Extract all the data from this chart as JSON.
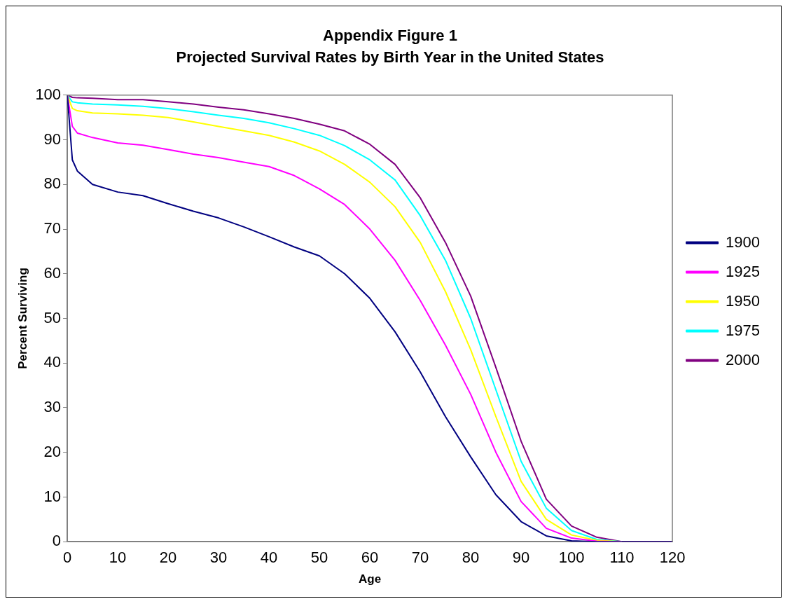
{
  "chart_data": {
    "type": "line",
    "title": "Appendix Figure 1",
    "subtitle": "Projected Survival Rates by Birth Year in the United States",
    "xlabel": "Age",
    "ylabel": "Percent Surviving",
    "x": [
      0,
      1,
      2,
      5,
      10,
      15,
      20,
      25,
      30,
      35,
      40,
      45,
      50,
      55,
      60,
      65,
      70,
      75,
      80,
      85,
      90,
      95,
      100,
      105,
      110,
      115,
      120
    ],
    "xlim": [
      0,
      120
    ],
    "xticks": [
      0,
      10,
      20,
      30,
      40,
      50,
      60,
      70,
      80,
      90,
      100,
      110,
      120
    ],
    "ylim": [
      0,
      100
    ],
    "yticks": [
      0,
      10,
      20,
      30,
      40,
      50,
      60,
      70,
      80,
      90,
      100
    ],
    "grid": false,
    "legend": "right",
    "marker": "none",
    "line_style": "solid",
    "series": [
      {
        "name": "1900",
        "color": "#000080",
        "values": [
          100,
          85.5,
          83,
          80,
          78.3,
          77.5,
          75.7,
          74,
          72.5,
          70.5,
          68.3,
          66,
          64,
          60,
          54.5,
          47,
          38,
          28,
          19,
          10.5,
          4.5,
          1.3,
          0.2,
          0,
          0,
          0,
          0
        ]
      },
      {
        "name": "1925",
        "color": "#ff00ff",
        "x": [
          0,
          1,
          2,
          5,
          10,
          15,
          20,
          25,
          30,
          35,
          40,
          45,
          50,
          55,
          60,
          65,
          70,
          75,
          80,
          85,
          90,
          95,
          100,
          105,
          110
        ],
        "values": [
          100,
          93,
          91.5,
          90.5,
          89.3,
          88.8,
          87.8,
          86.8,
          86,
          85,
          84,
          82,
          79,
          75.5,
          70,
          63,
          54,
          44,
          33,
          20,
          9,
          3,
          0.8,
          0.1,
          0
        ]
      },
      {
        "name": "1950",
        "color": "#ffff00",
        "x": [
          0,
          1,
          2,
          5,
          10,
          15,
          20,
          25,
          30,
          35,
          40,
          45,
          50,
          55,
          60,
          65,
          70,
          75,
          80,
          85,
          90,
          95,
          100,
          105,
          110
        ],
        "values": [
          100,
          97,
          96.5,
          96,
          95.8,
          95.5,
          95,
          94,
          93,
          92,
          91,
          89.5,
          87.5,
          84.5,
          80.5,
          75,
          67,
          56,
          43,
          28,
          13.5,
          5,
          1.5,
          0.3,
          0
        ]
      },
      {
        "name": "1975",
        "color": "#00ffff",
        "x": [
          0,
          1,
          2,
          5,
          10,
          15,
          20,
          25,
          30,
          35,
          40,
          45,
          50,
          55,
          60,
          65,
          70,
          75,
          80,
          85,
          90,
          95,
          100,
          105,
          110
        ],
        "values": [
          100,
          98.5,
          98.3,
          98,
          97.8,
          97.5,
          97,
          96.3,
          95.5,
          94.8,
          93.8,
          92.5,
          91,
          88.7,
          85.5,
          81,
          73,
          63,
          50,
          34,
          18,
          7.5,
          2.5,
          0.5,
          0
        ]
      },
      {
        "name": "2000",
        "color": "#800080",
        "values": [
          100,
          99.5,
          99.4,
          99.3,
          99,
          99,
          98.5,
          98,
          97.3,
          96.7,
          95.8,
          94.8,
          93.5,
          92,
          89,
          84.5,
          77,
          67,
          55,
          39,
          22.5,
          9.5,
          3.5,
          1,
          0,
          0,
          0
        ]
      }
    ]
  }
}
